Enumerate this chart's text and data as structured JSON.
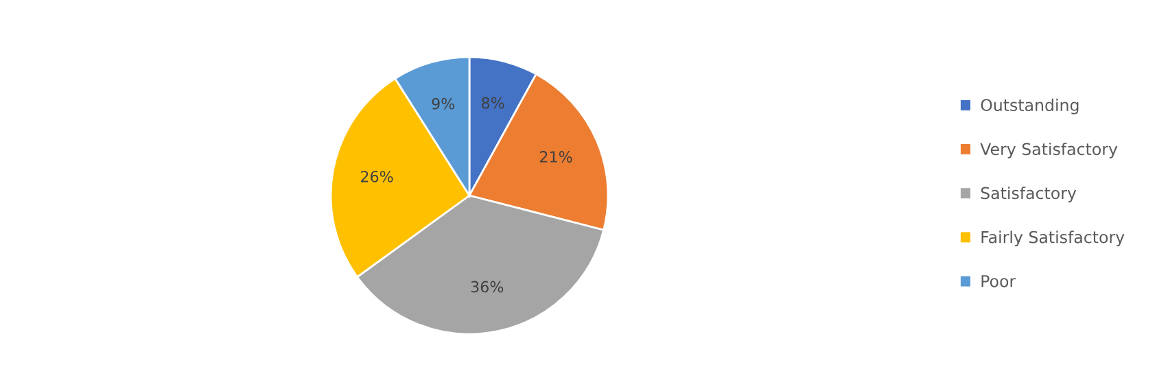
{
  "chart_data": {
    "type": "pie",
    "categories": [
      "Outstanding",
      "Very Satisfactory",
      "Satisfactory",
      "Fairly Satisfactory",
      "Poor"
    ],
    "values": [
      8,
      21,
      36,
      26,
      9
    ],
    "colors": [
      "#4472c4",
      "#ed7d31",
      "#a5a5a5",
      "#ffc000",
      "#5b9bd5"
    ],
    "value_labels": [
      "8%",
      "21%",
      "36%",
      "26%",
      "9%"
    ],
    "legend": "right"
  }
}
